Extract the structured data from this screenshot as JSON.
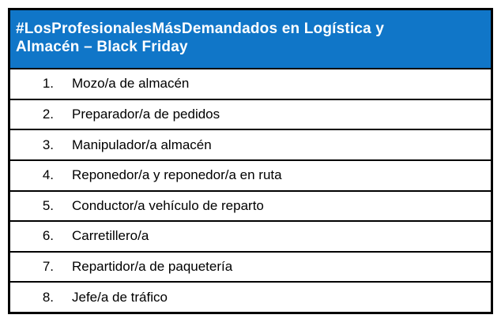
{
  "header": {
    "title_line1": "#LosProfesionalesMásDemandados en Logística y",
    "title_line2": "Almacén – Black Friday"
  },
  "rows": [
    {
      "num": "1.",
      "label": "Mozo/a de almacén"
    },
    {
      "num": "2.",
      "label": "Preparador/a de pedidos"
    },
    {
      "num": "3.",
      "label": "Manipulador/a almacén"
    },
    {
      "num": "4.",
      "label": "Reponedor/a y reponedor/a en ruta"
    },
    {
      "num": "5.",
      "label": "Conductor/a vehículo de reparto"
    },
    {
      "num": "6.",
      "label": "Carretillero/a"
    },
    {
      "num": "7.",
      "label": "Repartidor/a de paquetería"
    },
    {
      "num": "8.",
      "label": "Jefe/a de tráfico"
    }
  ],
  "colors": {
    "header_bg": "#1076C8",
    "header_text": "#FFFFFF",
    "border": "#000000",
    "row_text": "#000000",
    "row_bg": "#FFFFFF"
  }
}
